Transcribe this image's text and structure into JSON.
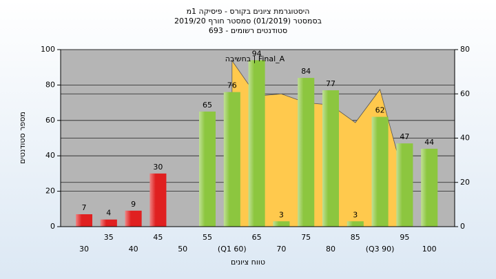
{
  "chart_data": {
    "type": "bar",
    "title": [
      "היסטוגרמת ציונים בקורס - פיסיקה 1מ",
      "בסמסטר  (01/2019)  סמסטר חורף 2019/20",
      "סטודנטים רשומים - 693"
    ],
    "x_label": "טווח ציונים",
    "y_label": "מספר סטודנטים",
    "annotation": "Final_A | בחשיבה",
    "categories": [
      "30",
      "35",
      "40",
      "45",
      "50",
      "55",
      "(Q1 60)",
      "65",
      "70",
      "75",
      "80",
      "85",
      "(Q3 90)",
      "95",
      "100"
    ],
    "values": [
      7,
      4,
      9,
      30,
      null,
      65,
      76,
      94,
      3,
      84,
      77,
      3,
      62,
      47,
      44
    ],
    "colors": [
      "#e02020",
      "#e02020",
      "#e02020",
      "#e02020",
      "#e02020",
      "#8cc63f",
      "#8cc63f",
      "#8cc63f",
      "#8cc63f",
      "#8cc63f",
      "#8cc63f",
      "#8cc63f",
      "#8cc63f",
      "#8cc63f",
      "#8cc63f"
    ],
    "area": {
      "color": "#ffc94d",
      "axis": "y2",
      "values": [
        null,
        null,
        null,
        null,
        null,
        null,
        75,
        59,
        60,
        56,
        55,
        47,
        62,
        21,
        null
      ]
    },
    "ylim": [
      0,
      100
    ],
    "yticks": [
      0,
      20,
      40,
      60,
      80,
      100
    ],
    "y2lim": [
      0,
      80
    ],
    "y2ticks": [
      0,
      20,
      40,
      60,
      80
    ],
    "grid": true
  }
}
